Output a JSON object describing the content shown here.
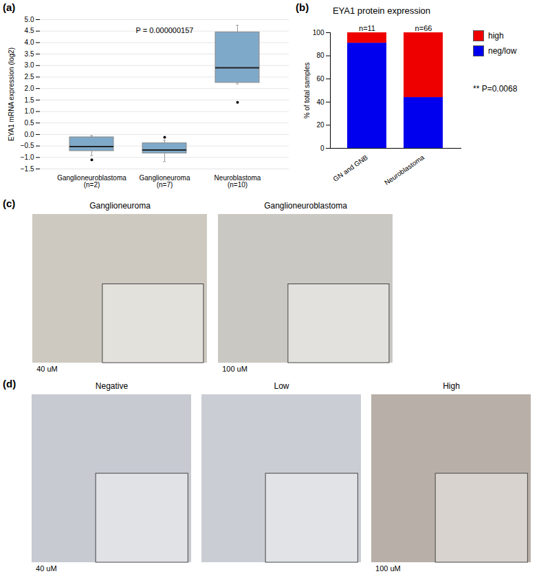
{
  "chart_data": [
    {
      "type": "box",
      "annotations": [
        "(a)",
        "P = 0.000000157"
      ],
      "ylabel": "EYA1 mRNA expression (log2)",
      "categories": [
        "Ganglioneuroblastoma\n(n=2)",
        "Ganglioneuroma\n(n=7)",
        "Neuroblastoma\n(n=10)"
      ],
      "boxes": [
        {
          "q1": -0.72,
          "median": -0.53,
          "q3": -0.12,
          "whislo": -0.92,
          "whishi": -0.05,
          "fliers": [
            -1.1
          ]
        },
        {
          "q1": -0.82,
          "median": -0.68,
          "q3": -0.38,
          "whislo": -1.18,
          "whishi": -0.25,
          "fliers": [
            -0.12
          ]
        },
        {
          "q1": 2.25,
          "median": 2.9,
          "q3": 4.45,
          "whislo": 2.2,
          "whishi": 4.75,
          "fliers": [
            1.4
          ]
        }
      ],
      "color": "#7fa9c9",
      "ylim": [
        -1.5,
        5.0
      ],
      "yticks": [
        -1.5,
        {
          "value": -1.0,
          "label": "−1.0"
        },
        -0.5,
        {
          "value": 0.0,
          "label": "0.0"
        },
        0.5,
        {
          "value": 1.0,
          "label": "1.0"
        },
        1.5,
        {
          "value": 2.0,
          "label": "2.0"
        },
        2.5,
        {
          "value": 3.0,
          "label": "3.0"
        },
        3.5,
        {
          "value": 4.0,
          "label": "4.0"
        },
        4.5,
        {
          "value": 5.0,
          "label": "5.0"
        }
      ],
      "grid": true
    },
    {
      "type": "bar",
      "annotations": [
        "(b)",
        "** P=0.0068"
      ],
      "title": "EYA1 protein expression",
      "ylabel": "% of total samples",
      "categories": [
        "GN and GNB",
        "Neuroblastoma"
      ],
      "n_labels": [
        "n=11",
        "n=66"
      ],
      "series": [
        {
          "name": "neg/low",
          "color": "#0000ee",
          "values": [
            91,
            44
          ]
        },
        {
          "name": "high",
          "color": "#ee0000",
          "values": [
            9,
            56
          ]
        }
      ],
      "stacked": true,
      "legend": "right",
      "ylim": [
        0,
        100
      ],
      "yticks": [
        0,
        20,
        40,
        60,
        80,
        100
      ]
    },
    {
      "type": "image",
      "annotations": [
        "(c)"
      ],
      "categories": [
        "Ganglioneuroma",
        "Ganglioneuroblastoma"
      ],
      "scale_labels": [
        "40 uM",
        "100 uM"
      ],
      "colors": [
        "#cdc9c0",
        "#cac8c2"
      ]
    },
    {
      "type": "image",
      "annotations": [
        "(d)"
      ],
      "categories": [
        "Negative",
        "Low",
        "High"
      ],
      "scale_labels": [
        "40 uM",
        null,
        "100 uM"
      ],
      "colors": [
        "#c8cad2",
        "#cbcdd4",
        "#b8b0a8"
      ]
    }
  ]
}
